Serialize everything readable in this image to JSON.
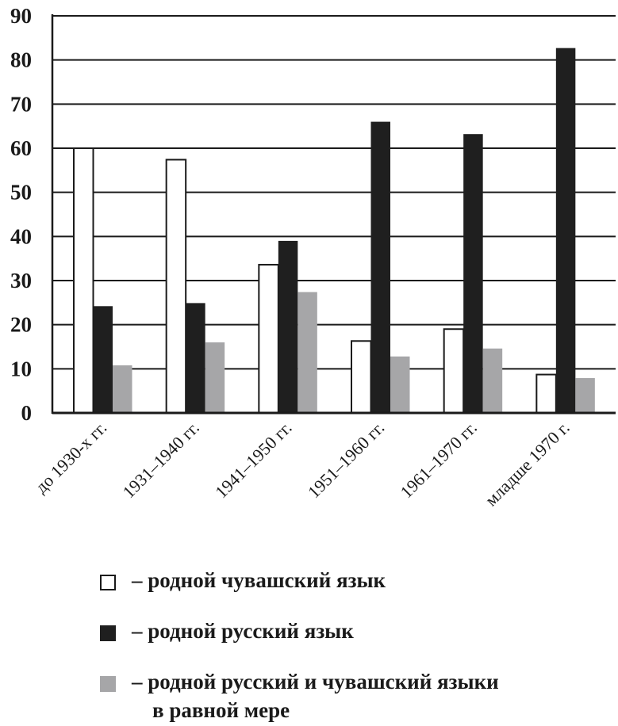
{
  "chart_data": {
    "type": "bar",
    "title": "",
    "xlabel": "",
    "ylabel": "",
    "ylim": [
      0,
      90
    ],
    "yticks": [
      "0",
      "10",
      "20",
      "30",
      "40",
      "50",
      "60",
      "70",
      "80",
      "90"
    ],
    "grid": true,
    "categories": [
      "до 1930-х гг.",
      "1931–1940 гг.",
      "1941–1950 гг.",
      "1951–1960 гг.",
      "1961–1970 гг.",
      "младше 1970 г."
    ],
    "series": [
      {
        "name": "– родной чувашский язык",
        "color": "#ffffff",
        "values": [
          60.0,
          57.4,
          33.6,
          16.3,
          19.0,
          8.7
        ]
      },
      {
        "name": "– родной русский язык",
        "color": "#1f1f1f",
        "values": [
          24.2,
          24.9,
          39.0,
          66.0,
          63.2,
          82.7
        ]
      },
      {
        "name": "– родной русский и чувашский языки в равной мере",
        "name_lines": [
          "– родной русский и чувашский языки",
          "в равной мере"
        ],
        "color": "#a6a6a8",
        "values": [
          10.8,
          16.0,
          27.4,
          12.8,
          14.6,
          7.9
        ]
      }
    ],
    "legend_position": "bottom"
  }
}
